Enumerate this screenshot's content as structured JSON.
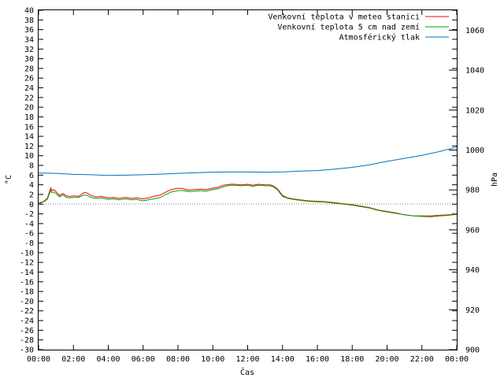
{
  "chart_data": {
    "type": "line",
    "xlabel": "Čas",
    "ylabel": "°C",
    "y2label": "hPa",
    "x_ticks": [
      "00:00",
      "02:00",
      "04:00",
      "06:00",
      "08:00",
      "10:00",
      "12:00",
      "14:00",
      "16:00",
      "18:00",
      "20:00",
      "22:00",
      "00:00"
    ],
    "x_range_hours": [
      0,
      24
    ],
    "ylim": [
      -30,
      40
    ],
    "y_tick_step": 2,
    "y2lim": [
      900,
      1070
    ],
    "y2_ticks": [
      900,
      920,
      940,
      960,
      980,
      1000,
      1020,
      1040,
      1060
    ],
    "grid": false,
    "legend_position": "top-right",
    "series": [
      {
        "name": "Venkovní teplota v meteo stanici",
        "color": "#ff0000",
        "axis": "left",
        "x": [
          0,
          0.3,
          0.5,
          0.7,
          0.75,
          0.85,
          1,
          1.2,
          1.4,
          1.6,
          1.8,
          2,
          2.3,
          2.6,
          2.8,
          3,
          3.3,
          3.6,
          4,
          4.3,
          4.6,
          5,
          5.3,
          5.6,
          6,
          6.3,
          6.6,
          7,
          7.3,
          7.6,
          8,
          8.3,
          8.6,
          9,
          9.3,
          9.6,
          10,
          10.3,
          10.6,
          11,
          11.3,
          11.6,
          12,
          12.3,
          12.6,
          13,
          13.3,
          13.5,
          13.7,
          14,
          14.3,
          14.6,
          15,
          15.5,
          16,
          16.5,
          17,
          17.5,
          18,
          18.5,
          19,
          19.5,
          20,
          20.5,
          21,
          21.5,
          22,
          22.5,
          23,
          23.5,
          24
        ],
        "y": [
          0,
          0.6,
          1.2,
          3.4,
          2.8,
          3.0,
          2.6,
          1.8,
          2.2,
          1.7,
          1.6,
          1.7,
          1.6,
          2.4,
          2.3,
          1.8,
          1.5,
          1.6,
          1.3,
          1.4,
          1.2,
          1.4,
          1.2,
          1.3,
          1.1,
          1.3,
          1.6,
          1.9,
          2.5,
          3.0,
          3.3,
          3.2,
          2.9,
          3.0,
          3.1,
          3.0,
          3.3,
          3.5,
          3.9,
          4.1,
          4.1,
          4.0,
          4.1,
          3.9,
          4.1,
          4.0,
          4.0,
          3.7,
          3.2,
          1.8,
          1.3,
          1.1,
          0.9,
          0.7,
          0.6,
          0.5,
          0.3,
          0.1,
          -0.1,
          -0.4,
          -0.7,
          -1.2,
          -1.5,
          -1.8,
          -2.2,
          -2.4,
          -2.5,
          -2.6,
          -2.4,
          -2.3,
          -2.1
        ]
      },
      {
        "name": "Venkovní teplota 5 cm nad zemí",
        "color": "#00a000",
        "axis": "left",
        "x": [
          0,
          0.3,
          0.5,
          0.7,
          0.75,
          0.85,
          1,
          1.2,
          1.4,
          1.6,
          1.8,
          2,
          2.3,
          2.6,
          2.8,
          3,
          3.3,
          3.6,
          4,
          4.3,
          4.6,
          5,
          5.3,
          5.6,
          6,
          6.3,
          6.6,
          7,
          7.3,
          7.6,
          8,
          8.3,
          8.6,
          9,
          9.3,
          9.6,
          10,
          10.3,
          10.6,
          11,
          11.3,
          11.6,
          12,
          12.3,
          12.6,
          13,
          13.3,
          13.5,
          13.7,
          14,
          14.3,
          14.6,
          15,
          15.5,
          16,
          16.5,
          17,
          17.5,
          18,
          18.5,
          19,
          19.5,
          20,
          20.5,
          21,
          21.5,
          22,
          22.5,
          23,
          23.5,
          24
        ],
        "y": [
          0.3,
          0.5,
          1.0,
          2.9,
          2.4,
          2.5,
          2.2,
          1.5,
          1.9,
          1.4,
          1.3,
          1.4,
          1.4,
          1.9,
          1.8,
          1.4,
          1.2,
          1.3,
          1.0,
          1.1,
          0.9,
          1.1,
          0.9,
          1.0,
          0.7,
          0.9,
          1.1,
          1.4,
          2.0,
          2.5,
          2.8,
          2.8,
          2.6,
          2.7,
          2.8,
          2.7,
          3.0,
          3.2,
          3.6,
          3.9,
          3.9,
          3.8,
          3.9,
          3.7,
          3.9,
          3.8,
          3.8,
          3.5,
          3.0,
          1.6,
          1.2,
          1.0,
          0.8,
          0.6,
          0.5,
          0.4,
          0.2,
          0.0,
          -0.2,
          -0.5,
          -0.8,
          -1.3,
          -1.6,
          -1.9,
          -2.2,
          -2.4,
          -2.4,
          -2.4,
          -2.3,
          -2.2,
          -2.0
        ]
      },
      {
        "name": "Atmosférický tlak",
        "color": "#0070c0",
        "axis": "right",
        "x": [
          0,
          1,
          2,
          3,
          4,
          5,
          6,
          7,
          8,
          9,
          10,
          11,
          12,
          13,
          14,
          15,
          16,
          17,
          18,
          19,
          20,
          21,
          22,
          23,
          24
        ],
        "y": [
          988.5,
          988.3,
          987.8,
          987.6,
          987.3,
          987.4,
          987.6,
          987.9,
          988.3,
          988.6,
          988.9,
          989.0,
          989.0,
          988.9,
          989.0,
          989.4,
          989.7,
          990.4,
          991.3,
          992.6,
          994.3,
          995.8,
          997.3,
          999.2,
          1001.5
        ]
      }
    ]
  }
}
